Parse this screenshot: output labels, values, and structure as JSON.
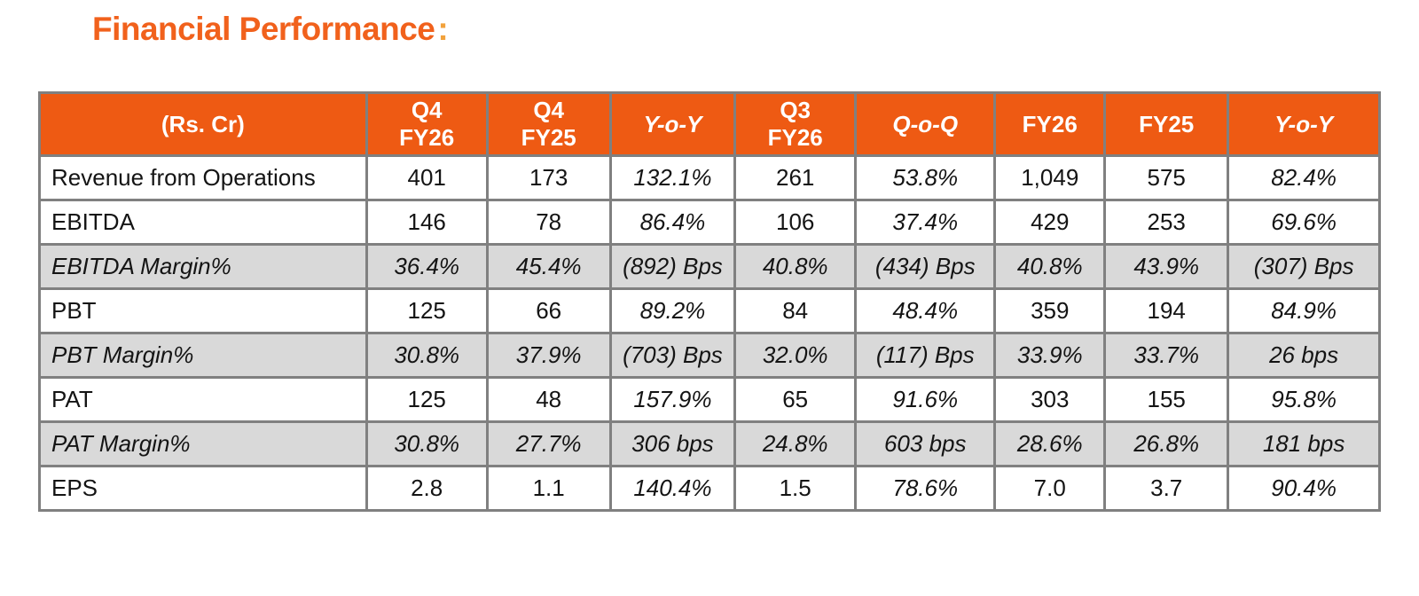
{
  "title": {
    "text": "Financial Performance",
    "colon": ":"
  },
  "colors": {
    "title_orange": "#F1611C",
    "colon_amber": "#F2A23C",
    "header_bg": "#EE5A13",
    "header_text": "#FFFFFF",
    "shaded_row_bg": "#D9D9D9",
    "grid_border": "#808080",
    "body_text": "#141414"
  },
  "table": {
    "columns": [
      {
        "label": "(Rs. Cr)",
        "italic": false
      },
      {
        "label": "Q4\nFY26",
        "italic": false
      },
      {
        "label": "Q4\nFY25",
        "italic": false
      },
      {
        "label": "Y-o-Y",
        "italic": true
      },
      {
        "label": "Q3\nFY26",
        "italic": false
      },
      {
        "label": "Q-o-Q",
        "italic": true
      },
      {
        "label": "FY26",
        "italic": false
      },
      {
        "label": "FY25",
        "italic": false
      },
      {
        "label": "Y-o-Y",
        "italic": true
      }
    ],
    "rows": [
      {
        "label": "Revenue from Operations",
        "shaded": false,
        "values": [
          "401",
          "173",
          "132.1%",
          "261",
          "53.8%",
          "1,049",
          "575",
          "82.4%"
        ]
      },
      {
        "label": "EBITDA",
        "shaded": false,
        "values": [
          "146",
          "78",
          "86.4%",
          "106",
          "37.4%",
          "429",
          "253",
          "69.6%"
        ]
      },
      {
        "label": "EBITDA Margin%",
        "shaded": true,
        "values": [
          "36.4%",
          "45.4%",
          "(892) Bps",
          "40.8%",
          "(434) Bps",
          "40.8%",
          "43.9%",
          "(307) Bps"
        ]
      },
      {
        "label": "PBT",
        "shaded": false,
        "values": [
          "125",
          "66",
          "89.2%",
          "84",
          "48.4%",
          "359",
          "194",
          "84.9%"
        ]
      },
      {
        "label": "PBT Margin%",
        "shaded": true,
        "values": [
          "30.8%",
          "37.9%",
          "(703) Bps",
          "32.0%",
          "(117) Bps",
          "33.9%",
          "33.7%",
          "26 bps"
        ]
      },
      {
        "label": "PAT",
        "shaded": false,
        "values": [
          "125",
          "48",
          "157.9%",
          "65",
          "91.6%",
          "303",
          "155",
          "95.8%"
        ]
      },
      {
        "label": "PAT Margin%",
        "shaded": true,
        "values": [
          "30.8%",
          "27.7%",
          "306 bps",
          "24.8%",
          "603 bps",
          "28.6%",
          "26.8%",
          "181 bps"
        ]
      },
      {
        "label": "EPS",
        "shaded": false,
        "values": [
          "2.8",
          "1.1",
          "140.4%",
          "1.5",
          "78.6%",
          "7.0",
          "3.7",
          "90.4%"
        ]
      }
    ]
  }
}
